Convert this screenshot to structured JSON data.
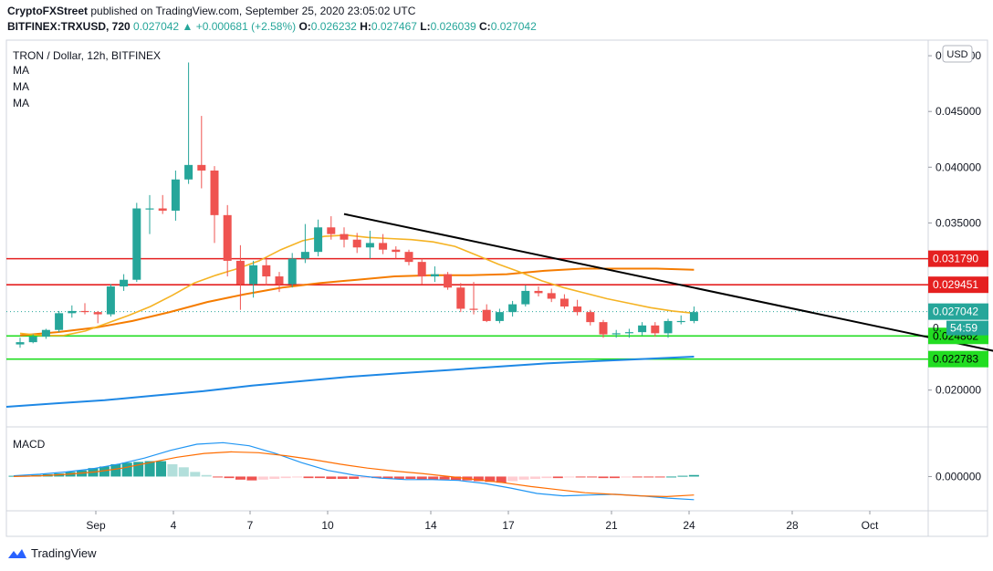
{
  "header": {
    "author": "CryptoFXStreet",
    "published_text": "published on TradingView.com, September 25, 2020 23:05:02 UTC",
    "symbol": "BITFINEX:TRXUSD, 720",
    "last": "0.027042",
    "change": "+0.000681 (+2.58%)",
    "o_label": "O:",
    "o": "0.026232",
    "h_label": "H:",
    "h": "0.027467",
    "l_label": "L:",
    "l": "0.026039",
    "c_label": "C:",
    "c": "0.027042"
  },
  "pane_title": "TRON / Dollar, 12h, BITFINEX",
  "ma_labels": [
    "MA",
    "MA",
    "MA"
  ],
  "currency": "USD",
  "countdown": "54:59",
  "price_partial_label": "0.",
  "macd_label": "MACD",
  "macd_zero_label": "0.000000",
  "footer": {
    "brand": "TradingView"
  },
  "colors": {
    "up": "#26a69a",
    "down": "#ef5350",
    "ma_fast": "#f5b324",
    "ma_mid": "#f57c00",
    "ma_slow": "#1e88e5",
    "resistance": "#e52020",
    "support": "#22dd22",
    "trendline": "#000000"
  },
  "chart_data": {
    "type": "candlestick",
    "title": "TRON / Dollar, 12h, BITFINEX",
    "x_ticks": [
      "Sep",
      "4",
      "7",
      "10",
      "14",
      "17",
      "21",
      "24",
      "28",
      "Oct"
    ],
    "y_ticks": [
      "0.050000",
      "0.045000",
      "0.040000",
      "0.035000",
      "0.020000"
    ],
    "ylim": [
      0.0167,
      0.0514
    ],
    "candles_ohlc": [
      [
        0.0241,
        0.0247,
        0.0238,
        0.0243
      ],
      [
        0.0243,
        0.025,
        0.0242,
        0.0248
      ],
      [
        0.0248,
        0.0255,
        0.0246,
        0.0254
      ],
      [
        0.0254,
        0.0271,
        0.0252,
        0.0269
      ],
      [
        0.0269,
        0.0276,
        0.0265,
        0.0271
      ],
      [
        0.0271,
        0.0278,
        0.0268,
        0.027
      ],
      [
        0.027,
        0.0271,
        0.026,
        0.0268
      ],
      [
        0.0268,
        0.0295,
        0.0266,
        0.0293
      ],
      [
        0.0293,
        0.0304,
        0.0289,
        0.0299
      ],
      [
        0.0299,
        0.0368,
        0.0297,
        0.0363
      ],
      [
        0.0363,
        0.0375,
        0.034,
        0.0363
      ],
      [
        0.0363,
        0.0375,
        0.0358,
        0.0361
      ],
      [
        0.0361,
        0.0397,
        0.0352,
        0.0389
      ],
      [
        0.0389,
        0.0494,
        0.0385,
        0.0402
      ],
      [
        0.0402,
        0.0446,
        0.0381,
        0.0397
      ],
      [
        0.0397,
        0.0401,
        0.0332,
        0.0357
      ],
      [
        0.0357,
        0.0366,
        0.0302,
        0.0316
      ],
      [
        0.0316,
        0.033,
        0.0272,
        0.0295
      ],
      [
        0.0295,
        0.0316,
        0.0283,
        0.0312
      ],
      [
        0.0312,
        0.0319,
        0.0294,
        0.0302
      ],
      [
        0.0302,
        0.0306,
        0.0288,
        0.0295
      ],
      [
        0.0295,
        0.0323,
        0.0292,
        0.0318
      ],
      [
        0.0318,
        0.0349,
        0.0314,
        0.0324
      ],
      [
        0.0324,
        0.0353,
        0.032,
        0.0346
      ],
      [
        0.0346,
        0.0356,
        0.0335,
        0.034
      ],
      [
        0.034,
        0.0346,
        0.0328,
        0.0335
      ],
      [
        0.0335,
        0.0341,
        0.0323,
        0.0328
      ],
      [
        0.0328,
        0.0343,
        0.0318,
        0.0332
      ],
      [
        0.0332,
        0.034,
        0.0322,
        0.0326
      ],
      [
        0.0326,
        0.0329,
        0.0318,
        0.0324
      ],
      [
        0.0324,
        0.0326,
        0.0312,
        0.0315
      ],
      [
        0.0315,
        0.0318,
        0.0295,
        0.0302
      ],
      [
        0.0302,
        0.0311,
        0.0297,
        0.0304
      ],
      [
        0.0304,
        0.0306,
        0.029,
        0.0292
      ],
      [
        0.0292,
        0.0296,
        0.027,
        0.0273
      ],
      [
        0.0273,
        0.0297,
        0.0268,
        0.0272
      ],
      [
        0.0272,
        0.0277,
        0.0261,
        0.0262
      ],
      [
        0.0262,
        0.0273,
        0.026,
        0.027
      ],
      [
        0.027,
        0.028,
        0.0266,
        0.0277
      ],
      [
        0.0277,
        0.0294,
        0.0275,
        0.0289
      ],
      [
        0.0289,
        0.0293,
        0.0284,
        0.0287
      ],
      [
        0.0287,
        0.0291,
        0.0279,
        0.0282
      ],
      [
        0.0282,
        0.0286,
        0.0273,
        0.0275
      ],
      [
        0.0275,
        0.0281,
        0.0267,
        0.027
      ],
      [
        0.027,
        0.0272,
        0.0258,
        0.0261
      ],
      [
        0.0261,
        0.0263,
        0.0247,
        0.025
      ],
      [
        0.025,
        0.0254,
        0.0247,
        0.0251
      ],
      [
        0.0251,
        0.0255,
        0.0247,
        0.0252
      ],
      [
        0.0252,
        0.0261,
        0.0249,
        0.0258
      ],
      [
        0.0258,
        0.0261,
        0.0248,
        0.0251
      ],
      [
        0.0251,
        0.0264,
        0.0247,
        0.0262
      ],
      [
        0.0262,
        0.0267,
        0.0259,
        0.0262
      ],
      [
        0.0262,
        0.0275,
        0.026,
        0.027
      ]
    ],
    "ma_fast_values": [
      0.0251,
      0.0249,
      0.0249,
      0.0253,
      0.026,
      0.0267,
      0.0275,
      0.0285,
      0.0296,
      0.0303,
      0.0309,
      0.0316,
      0.0326,
      0.0334,
      0.0338,
      0.0339,
      0.0337,
      0.0336,
      0.0335,
      0.0333,
      0.0329,
      0.0321,
      0.0313,
      0.0306,
      0.0298,
      0.0292,
      0.0287,
      0.0282,
      0.0278,
      0.0274,
      0.0271,
      0.0269
    ],
    "ma_mid_values": [
      0.0249,
      0.0252,
      0.0256,
      0.0262,
      0.027,
      0.0279,
      0.0286,
      0.0292,
      0.0296,
      0.0299,
      0.0302,
      0.0303,
      0.0303,
      0.0304,
      0.0307,
      0.0309,
      0.0309,
      0.0309,
      0.0308
    ],
    "ma_slow_values": [
      0.0185,
      0.0188,
      0.0191,
      0.0195,
      0.0199,
      0.0204,
      0.0208,
      0.0212,
      0.0215,
      0.0218,
      0.0221,
      0.0224,
      0.0226,
      0.0228,
      0.023
    ],
    "hlines": [
      {
        "value": 0.03179,
        "label": "0.031790",
        "color": "#e52020"
      },
      {
        "value": 0.029451,
        "label": "0.029451",
        "color": "#e52020"
      },
      {
        "value": 0.024862,
        "label": "0.024862",
        "color": "#22dd22"
      },
      {
        "value": 0.022783,
        "label": "0.022783",
        "color": "#22dd22"
      }
    ],
    "last_price": {
      "value": 0.027042,
      "label": "0.027042"
    },
    "trendline": {
      "from_index": 25,
      "from_value": 0.0358,
      "to_index": 76,
      "to_value": 0.0233
    },
    "macd": {
      "histogram": [
        0.0001,
        0.0001,
        0.0002,
        0.0003,
        0.0004,
        0.0006,
        0.0008,
        0.0011,
        0.0013,
        0.0016,
        0.0018,
        0.0019,
        0.002,
        0.002,
        0.0016,
        0.0012,
        0.0006,
        0.0002,
        -0.0001,
        -0.0002,
        -0.0004,
        -0.0005,
        -0.0004,
        -0.0003,
        -0.0002,
        -0.0001,
        -0.0002,
        -0.0002,
        -0.0003,
        -0.0003,
        -0.0003,
        -0.0002,
        -0.0002,
        -0.0003,
        -0.0003,
        -0.0003,
        -0.0004,
        -0.0004,
        -0.0004,
        -0.0005,
        -0.0005,
        -0.0006,
        -0.0007,
        -0.0008,
        -0.0006,
        -0.0004,
        -0.0003,
        -0.0002,
        -0.0002,
        -0.0001,
        -0.0001,
        -0.0001,
        -0.0002,
        -0.0002,
        -0.0001,
        -0.0001,
        -0.0001,
        -0.0001,
        0.0,
        0.0001,
        0.0002
      ],
      "macd_values": [
        0.0001,
        0.0003,
        0.0006,
        0.001,
        0.0016,
        0.0024,
        0.0034,
        0.0042,
        0.0044,
        0.004,
        0.003,
        0.0018,
        0.0008,
        0.0002,
        -0.0002,
        -0.0004,
        -0.0004,
        -0.0005,
        -0.0009,
        -0.0015,
        -0.0022,
        -0.0025,
        -0.0024,
        -0.0023,
        -0.0025,
        -0.0028,
        -0.003
      ],
      "signal_values": [
        0.0,
        0.0001,
        0.0003,
        0.0006,
        0.0011,
        0.0018,
        0.0025,
        0.003,
        0.0032,
        0.0031,
        0.0027,
        0.0022,
        0.0016,
        0.0011,
        0.0007,
        0.0004,
        0.0,
        -0.0004,
        -0.0008,
        -0.0013,
        -0.0017,
        -0.0021,
        -0.0023,
        -0.0025,
        -0.0026,
        -0.0024
      ],
      "ylim": [
        -0.0035,
        0.0055
      ]
    }
  }
}
